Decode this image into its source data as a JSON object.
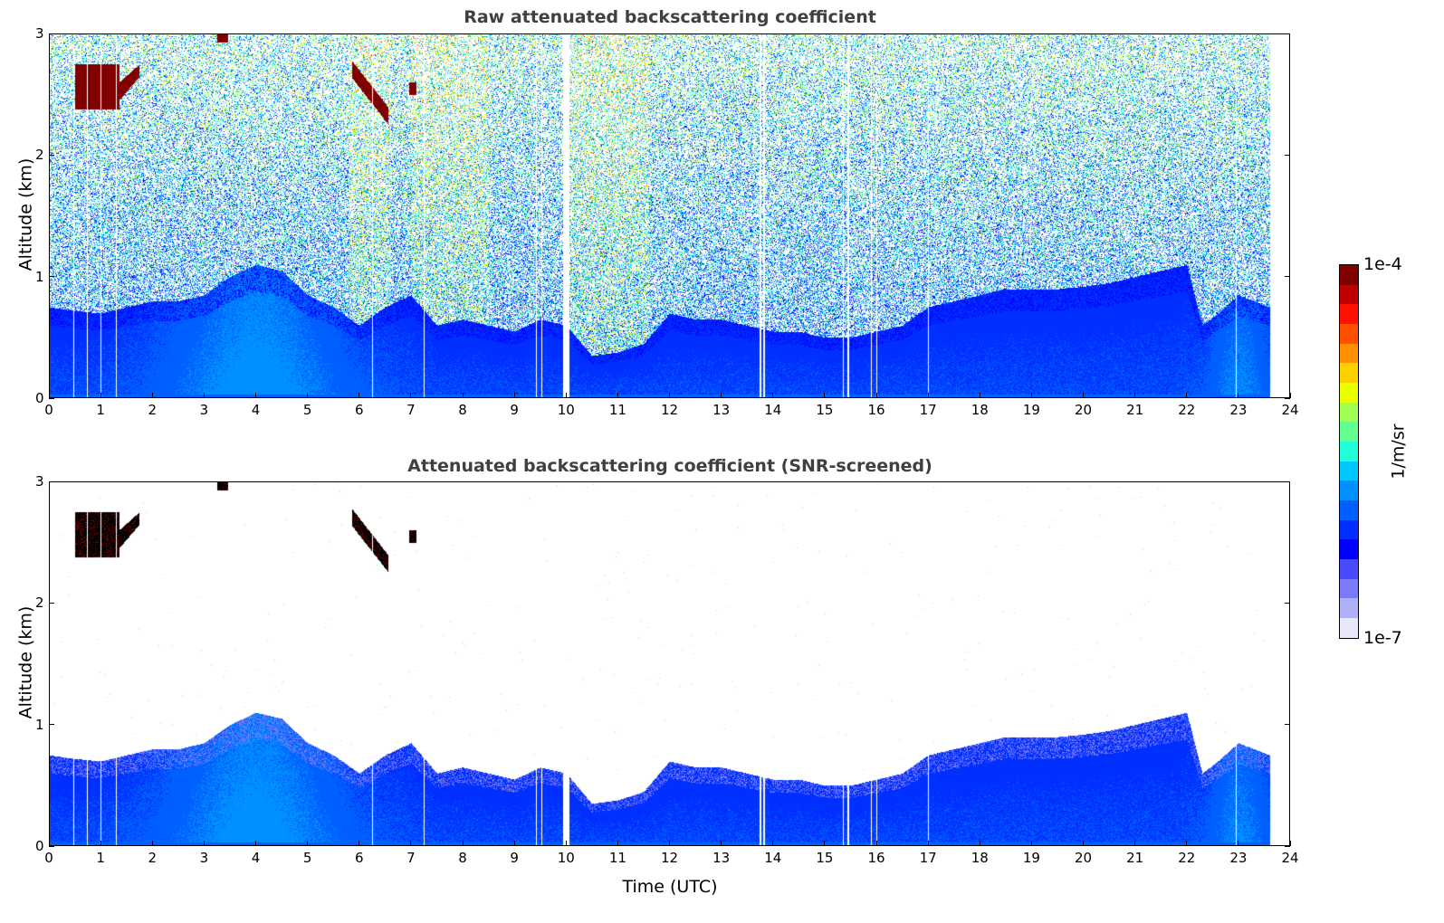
{
  "chart_data": [
    {
      "type": "heatmap",
      "title": "Raw attenuated backscattering coefficient",
      "xlabel": "",
      "ylabel": "Altitude (km)",
      "xlim": [
        0,
        24
      ],
      "ylim": [
        0,
        3
      ],
      "xticks": [
        "0",
        "1",
        "2",
        "3",
        "4",
        "5",
        "6",
        "7",
        "8",
        "9",
        "10",
        "11",
        "12",
        "13",
        "14",
        "15",
        "16",
        "17",
        "18",
        "19",
        "20",
        "21",
        "22",
        "23",
        "24"
      ],
      "yticks": [
        "0",
        "1",
        "2",
        "3"
      ],
      "screened": false
    },
    {
      "type": "heatmap",
      "title": "Attenuated backscattering coefficient (SNR-screened)",
      "xlabel": "Time (UTC)",
      "ylabel": "Altitude (km)",
      "xlim": [
        0,
        24
      ],
      "ylim": [
        0,
        3
      ],
      "xticks": [
        "0",
        "1",
        "2",
        "3",
        "4",
        "5",
        "6",
        "7",
        "8",
        "9",
        "10",
        "11",
        "12",
        "13",
        "14",
        "15",
        "16",
        "17",
        "18",
        "19",
        "20",
        "21",
        "22",
        "23",
        "24"
      ],
      "yticks": [
        "0",
        "1",
        "2",
        "3"
      ],
      "screened": true
    }
  ],
  "shared": {
    "data_end_time": 23.6,
    "boundary_layer_top_km": {
      "time": [
        0,
        0.5,
        1,
        1.5,
        2,
        2.5,
        3,
        3.5,
        4,
        4.5,
        5,
        5.5,
        6,
        6.5,
        7,
        7.5,
        8,
        8.5,
        9,
        9.5,
        10,
        10.5,
        11,
        11.5,
        12,
        12.5,
        13,
        13.5,
        14,
        14.5,
        15,
        15.5,
        16,
        16.5,
        17,
        17.5,
        18,
        18.5,
        19,
        19.5,
        20,
        20.5,
        21,
        21.5,
        22,
        22.3,
        22.6,
        23,
        23.6
      ],
      "height": [
        0.75,
        0.72,
        0.7,
        0.75,
        0.8,
        0.8,
        0.85,
        1.0,
        1.1,
        1.05,
        0.85,
        0.75,
        0.6,
        0.75,
        0.85,
        0.6,
        0.65,
        0.6,
        0.55,
        0.65,
        0.6,
        0.35,
        0.38,
        0.45,
        0.7,
        0.65,
        0.65,
        0.6,
        0.55,
        0.55,
        0.5,
        0.5,
        0.55,
        0.6,
        0.75,
        0.8,
        0.85,
        0.9,
        0.9,
        0.9,
        0.92,
        0.95,
        1.0,
        1.05,
        1.1,
        0.6,
        0.7,
        0.85,
        0.75
      ]
    },
    "clouds": [
      {
        "t0": 0.5,
        "t1": 1.75,
        "z0": 2.38,
        "z1": 2.75,
        "log_value": -4.0
      },
      {
        "t0": 3.25,
        "t1": 3.45,
        "z0": 2.93,
        "z1": 3.0,
        "log_value": -4.0
      },
      {
        "t0": 5.85,
        "t1": 6.55,
        "z0": 2.28,
        "z1": 2.78,
        "log_value": -4.0
      },
      {
        "t0": 6.95,
        "t1": 7.1,
        "z0": 2.5,
        "z1": 2.6,
        "log_value": -4.1
      }
    ],
    "data_gaps_utc": [
      0.47,
      0.73,
      1.0,
      1.3,
      6.25,
      7.25,
      9.42,
      9.52,
      9.95,
      10.02,
      13.75,
      13.82,
      15.35,
      15.45,
      15.9,
      16.0,
      17.0,
      22.95
    ]
  },
  "colorbar": {
    "label": "1/m/sr",
    "max_label": "1e-4",
    "min_label": "1e-7",
    "log_range": [
      -7,
      -4
    ],
    "stops": [
      "#e8e8fb",
      "#b0b0f8",
      "#7a7afa",
      "#4a4aff",
      "#0000ff",
      "#0030ff",
      "#0060ff",
      "#0090ff",
      "#00c8ff",
      "#20ffd8",
      "#60ff90",
      "#a0ff50",
      "#e8ff00",
      "#ffd000",
      "#ff9000",
      "#ff5000",
      "#ff1000",
      "#c00000",
      "#800000"
    ]
  }
}
